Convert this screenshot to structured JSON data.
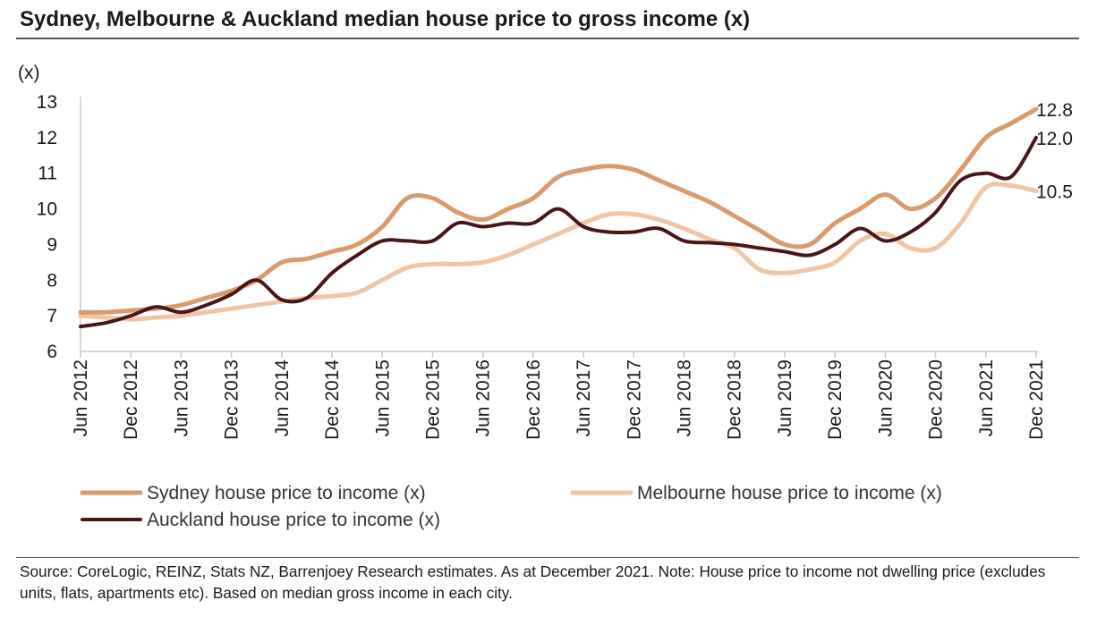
{
  "title": "Sydney, Melbourne & Auckland median house price to gross income (x)",
  "source": "Source: CoreLogic, REINZ, Stats NZ, Barrenjoey Research estimates. As at December 2021. Note: House price to income not dwelling price (excludes units, flats, apartments etc). Based on median gross income in each city.",
  "chart_data": {
    "type": "line",
    "title": "Sydney, Melbourne & Auckland median house price to gross income (x)",
    "ylabel": "(x)",
    "xlabel": "",
    "ylim": [
      6,
      13
    ],
    "yticks": [
      "6",
      "7",
      "8",
      "9",
      "10",
      "11",
      "12",
      "13"
    ],
    "grid": false,
    "legend": "bottom",
    "categories": [
      "Jun 2012",
      "Dec 2012",
      "Jun 2013",
      "Dec 2013",
      "Jun 2014",
      "Dec 2014",
      "Jun 2015",
      "Dec 2015",
      "Jun 2016",
      "Dec 2016",
      "Jun 2017",
      "Dec 2017",
      "Jun 2018",
      "Dec 2018",
      "Jun 2019",
      "Dec 2019",
      "Jun 2020",
      "Dec 2020",
      "Jun 2021",
      "Dec 2021"
    ],
    "series": [
      {
        "name": "Sydney house price to income (x)",
        "color": "#d99a6c",
        "end_label": "12.8",
        "x": [
          0,
          0.5,
          1,
          1.5,
          2,
          2.5,
          3,
          3.5,
          4,
          4.5,
          5,
          5.5,
          6,
          6.5,
          7,
          7.5,
          8,
          8.5,
          9,
          9.5,
          10,
          10.5,
          11,
          11.5,
          12,
          12.5,
          13,
          13.5,
          14,
          14.5,
          15,
          15.5,
          16,
          16.5,
          17,
          17.5,
          18,
          18.5,
          19
        ],
        "values": [
          7.1,
          7.1,
          7.15,
          7.2,
          7.3,
          7.5,
          7.7,
          8.0,
          8.5,
          8.6,
          8.8,
          9.0,
          9.5,
          10.3,
          10.3,
          9.9,
          9.7,
          10.0,
          10.3,
          10.9,
          11.1,
          11.2,
          11.1,
          10.8,
          10.5,
          10.2,
          9.8,
          9.4,
          9.0,
          9.0,
          9.6,
          10.0,
          10.4,
          10.0,
          10.3,
          11.1,
          12.0,
          12.4,
          12.8
        ]
      },
      {
        "name": "Melbourne house price to income (x)",
        "color": "#efc5a4",
        "end_label": "10.5",
        "x": [
          0,
          0.5,
          1,
          1.5,
          2,
          2.5,
          3,
          3.5,
          4,
          4.5,
          5,
          5.5,
          6,
          6.5,
          7,
          7.5,
          8,
          8.5,
          9,
          9.5,
          10,
          10.5,
          11,
          11.5,
          12,
          12.5,
          13,
          13.5,
          14,
          14.5,
          15,
          15.5,
          16,
          16.5,
          17,
          17.5,
          18,
          18.5,
          19
        ],
        "values": [
          7.0,
          6.95,
          6.9,
          6.95,
          7.0,
          7.1,
          7.2,
          7.3,
          7.4,
          7.5,
          7.55,
          7.65,
          8.0,
          8.35,
          8.45,
          8.45,
          8.5,
          8.7,
          9.0,
          9.3,
          9.6,
          9.85,
          9.85,
          9.7,
          9.45,
          9.15,
          8.9,
          8.3,
          8.2,
          8.3,
          8.5,
          9.1,
          9.3,
          8.9,
          8.9,
          9.6,
          10.6,
          10.65,
          10.5
        ]
      },
      {
        "name": "Auckland house price to income (x)",
        "color": "#4a1518",
        "end_label": "12.0",
        "x": [
          0,
          0.5,
          1,
          1.5,
          2,
          2.5,
          3,
          3.5,
          4,
          4.5,
          5,
          5.5,
          6,
          6.5,
          7,
          7.5,
          8,
          8.5,
          9,
          9.5,
          10,
          10.5,
          11,
          11.5,
          12,
          12.5,
          13,
          13.5,
          14,
          14.5,
          15,
          15.5,
          16,
          16.5,
          17,
          17.5,
          18,
          18.5,
          19
        ],
        "values": [
          6.7,
          6.8,
          7.0,
          7.25,
          7.1,
          7.3,
          7.6,
          8.0,
          7.45,
          7.5,
          8.2,
          8.7,
          9.1,
          9.1,
          9.1,
          9.6,
          9.5,
          9.6,
          9.6,
          10.0,
          9.5,
          9.35,
          9.35,
          9.45,
          9.1,
          9.05,
          9.0,
          8.9,
          8.8,
          8.7,
          9.0,
          9.45,
          9.1,
          9.35,
          9.9,
          10.8,
          11.0,
          10.9,
          12.0
        ]
      }
    ]
  }
}
